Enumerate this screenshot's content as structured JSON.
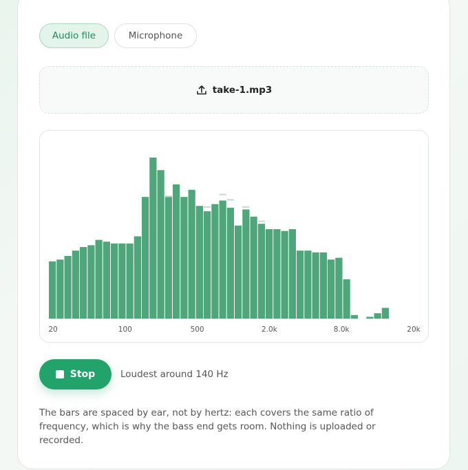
{
  "tabs": [
    "Audio file",
    "Microphone"
  ],
  "file_name": "take-1.mp3",
  "chart_data": {
    "type": "bar",
    "x_labels": [
      "20",
      "100",
      "500",
      "2.0k",
      "8.0k",
      "20k"
    ],
    "values": [
      32,
      33,
      35,
      38,
      40,
      41,
      44,
      43,
      42,
      42,
      42,
      46,
      68,
      90,
      83,
      68,
      75,
      68,
      72,
      63,
      60,
      64,
      66,
      62,
      52,
      61,
      57,
      53,
      50,
      50,
      49,
      50,
      38,
      38,
      37,
      37,
      33,
      34,
      22,
      2,
      0,
      1,
      3,
      6,
      0,
      0,
      0,
      0
    ],
    "peaks": [
      null,
      null,
      null,
      null,
      null,
      null,
      null,
      null,
      null,
      null,
      null,
      null,
      null,
      null,
      null,
      68,
      null,
      null,
      null,
      null,
      62,
      null,
      69,
      66,
      null,
      62,
      null,
      54,
      null,
      null,
      null,
      null,
      null,
      null,
      null,
      null,
      null,
      null,
      null,
      null,
      null,
      null,
      null,
      null,
      null,
      null,
      null,
      null
    ],
    "color": "#4fa67b",
    "peak_color": "#c3d9cd",
    "ylim": [
      0,
      100
    ]
  },
  "button": "Stop",
  "status": "Loudest around 140 Hz",
  "note": "The bars are spaced by ear, not by hertz: each covers the same ratio of frequency, which is why the bass end gets room. Nothing is uploaded or recorded."
}
